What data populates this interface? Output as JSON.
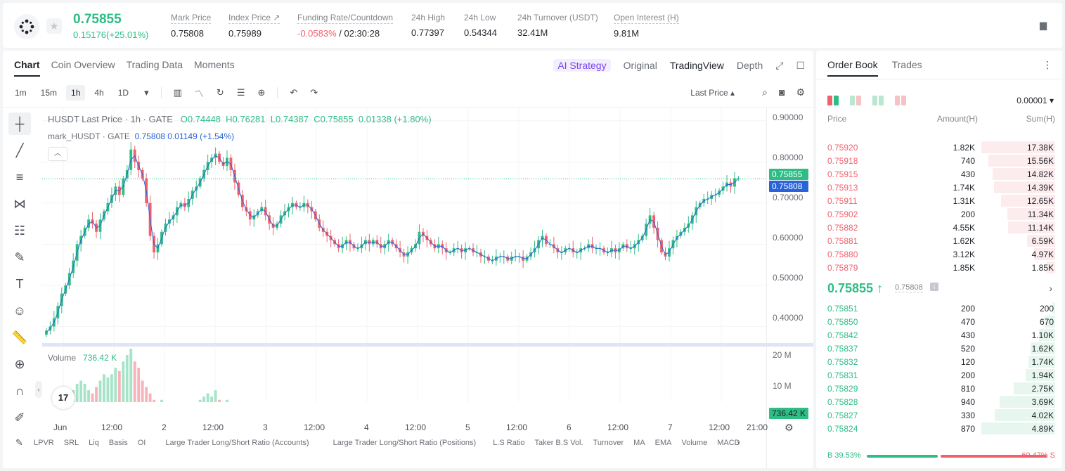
{
  "ticker": {
    "last_price": "0.75855",
    "change": "0.15176(+25.01%)",
    "stats": [
      {
        "label": "Mark Price",
        "value": "0.75808"
      },
      {
        "label": "Index Price ↗",
        "value": "0.75989"
      },
      {
        "label": "Funding Rate/Countdown",
        "value_neg": "-0.0583%",
        "value": "/ 02:30:28"
      },
      {
        "label": "24h High",
        "value": "0.77397"
      },
      {
        "label": "24h Low",
        "value": "0.54344"
      },
      {
        "label": "24h Turnover (USDT)",
        "value": "32.41M"
      },
      {
        "label": "Open Interest (H)",
        "value": "9.81M"
      }
    ]
  },
  "chart_tabs": [
    "Chart",
    "Coin Overview",
    "Trading Data",
    "Moments"
  ],
  "view_tabs": {
    "strategy": "AI Strategy",
    "original": "Original",
    "tradingview": "TradingView",
    "depth": "Depth"
  },
  "timeframes": [
    "1m",
    "15m",
    "1h",
    "4h",
    "1D"
  ],
  "last_price_select": "Last Price",
  "legend": {
    "symbol": "HUSDT Last Price · 1h · GATE",
    "o": "O0.74448",
    "h": "H0.76281",
    "l": "L0.74387",
    "c": "C0.75855",
    "chg": "0.01338 (+1.80%)",
    "mark": "mark_HUSDT · GATE",
    "mark_val": "0.75808 0.01149 (+1.54%)",
    "volume_label": "Volume",
    "volume_val": "736.42 K"
  },
  "tv_logo": "17",
  "indicators": [
    "LPVR",
    "SRL",
    "Liq",
    "Basis",
    "OI",
    "Large Trader Long/Short Ratio (Accounts)",
    "Large Trader Long/Short Ratio (Positions)",
    "L.S Ratio",
    "Taker B.S Vol.",
    "Turnover",
    "MA",
    "EMA",
    "Volume",
    "MACD"
  ],
  "chart_data": {
    "type": "candlestick",
    "yaxis_ticks": [
      "0.90000",
      "0.80000",
      "0.70000",
      "0.60000",
      "0.50000",
      "0.40000"
    ],
    "ylim": [
      0.37,
      0.92
    ],
    "volume_ticks": [
      "20 M",
      "10 M"
    ],
    "x_ticks": [
      "Jun",
      "12:00",
      "2",
      "12:00",
      "3",
      "12:00",
      "4",
      "12:00",
      "5",
      "12:00",
      "6",
      "12:00",
      "7",
      "12:00",
      "21:00"
    ],
    "last_price_tag": "0.75855",
    "mark_price_tag": "0.75808",
    "volume_tag": "736.42 K",
    "closes": [
      0.39,
      0.4,
      0.42,
      0.45,
      0.48,
      0.5,
      0.53,
      0.56,
      0.6,
      0.62,
      0.64,
      0.66,
      0.65,
      0.63,
      0.66,
      0.68,
      0.7,
      0.72,
      0.74,
      0.72,
      0.76,
      0.78,
      0.83,
      0.8,
      0.78,
      0.76,
      0.7,
      0.62,
      0.58,
      0.6,
      0.63,
      0.65,
      0.66,
      0.67,
      0.69,
      0.7,
      0.69,
      0.71,
      0.73,
      0.74,
      0.76,
      0.78,
      0.8,
      0.81,
      0.82,
      0.8,
      0.79,
      0.81,
      0.78,
      0.75,
      0.72,
      0.69,
      0.68,
      0.66,
      0.67,
      0.68,
      0.69,
      0.67,
      0.65,
      0.64,
      0.65,
      0.67,
      0.68,
      0.69,
      0.7,
      0.69,
      0.69,
      0.7,
      0.69,
      0.68,
      0.66,
      0.64,
      0.63,
      0.62,
      0.61,
      0.6,
      0.59,
      0.6,
      0.61,
      0.6,
      0.59,
      0.59,
      0.6,
      0.61,
      0.6,
      0.61,
      0.6,
      0.59,
      0.6,
      0.61,
      0.6,
      0.59,
      0.58,
      0.57,
      0.58,
      0.59,
      0.6,
      0.63,
      0.62,
      0.61,
      0.6,
      0.59,
      0.6,
      0.59,
      0.58,
      0.58,
      0.59,
      0.59,
      0.58,
      0.59,
      0.59,
      0.58,
      0.58,
      0.57,
      0.57,
      0.56,
      0.56,
      0.57,
      0.57,
      0.57,
      0.56,
      0.57,
      0.57,
      0.57,
      0.56,
      0.57,
      0.58,
      0.59,
      0.61,
      0.62,
      0.6,
      0.6,
      0.59,
      0.58,
      0.58,
      0.59,
      0.59,
      0.58,
      0.58,
      0.59,
      0.59,
      0.6,
      0.59,
      0.59,
      0.59,
      0.58,
      0.58,
      0.59,
      0.58,
      0.59,
      0.6,
      0.59,
      0.59,
      0.6,
      0.61,
      0.62,
      0.65,
      0.67,
      0.64,
      0.61,
      0.58,
      0.57,
      0.59,
      0.61,
      0.62,
      0.63,
      0.64,
      0.65,
      0.67,
      0.69,
      0.7,
      0.71,
      0.71,
      0.72,
      0.72,
      0.73,
      0.74,
      0.75,
      0.74,
      0.76,
      0.76
    ],
    "volumes": [
      3,
      5,
      6,
      8,
      9,
      10,
      8,
      9,
      11,
      12,
      11,
      9,
      8,
      10,
      12,
      14,
      13,
      14,
      16,
      15,
      18,
      20,
      22,
      18,
      16,
      12,
      10,
      8,
      6,
      5,
      6,
      5,
      4,
      4,
      5,
      4,
      5,
      5,
      4,
      5,
      6,
      7,
      8,
      7,
      9,
      6,
      5,
      6,
      5,
      4,
      3,
      3,
      2,
      2,
      2,
      2,
      1,
      1,
      1,
      1,
      1,
      1,
      1,
      1,
      2,
      1,
      2,
      1,
      1,
      1,
      1,
      1,
      1,
      1,
      1,
      1,
      1,
      1,
      1,
      1,
      1,
      1,
      1,
      1,
      2,
      1,
      1,
      1,
      1,
      1,
      1,
      1,
      1,
      1,
      1,
      1,
      1,
      2,
      1,
      1,
      1,
      1,
      1,
      1,
      1,
      1,
      1,
      1,
      1,
      1,
      1,
      1,
      1,
      1,
      1,
      1,
      1,
      1,
      1,
      1,
      1,
      1,
      1,
      1,
      1,
      1,
      1,
      1,
      1,
      1,
      1,
      1,
      1,
      1,
      1,
      1,
      1,
      1,
      1,
      1,
      1,
      1,
      1,
      1,
      1,
      1,
      1,
      1,
      1,
      1,
      1,
      1,
      1,
      1,
      2,
      1,
      1,
      3,
      2,
      2,
      2,
      2,
      2,
      2,
      1,
      1,
      1,
      2,
      1,
      1,
      1,
      1,
      1,
      1,
      1,
      1,
      1,
      1,
      1,
      1,
      1
    ]
  },
  "order_book": {
    "tabs": [
      "Order Book",
      "Trades"
    ],
    "precision": "0.00001 ▾",
    "headers": {
      "price": "Price",
      "amount": "Amount(H)",
      "sum": "Sum(H)"
    },
    "asks": [
      {
        "price": "0.75920",
        "amount": "1.82K",
        "sum": "17.38K",
        "depth": 1.0
      },
      {
        "price": "0.75918",
        "amount": "740",
        "sum": "15.56K",
        "depth": 0.9
      },
      {
        "price": "0.75915",
        "amount": "430",
        "sum": "14.82K",
        "depth": 0.85
      },
      {
        "price": "0.75913",
        "amount": "1.74K",
        "sum": "14.39K",
        "depth": 0.83
      },
      {
        "price": "0.75911",
        "amount": "1.31K",
        "sum": "12.65K",
        "depth": 0.73
      },
      {
        "price": "0.75902",
        "amount": "200",
        "sum": "11.34K",
        "depth": 0.65
      },
      {
        "price": "0.75882",
        "amount": "4.55K",
        "sum": "11.14K",
        "depth": 0.64
      },
      {
        "price": "0.75881",
        "amount": "1.62K",
        "sum": "6.59K",
        "depth": 0.38
      },
      {
        "price": "0.75880",
        "amount": "3.12K",
        "sum": "4.97K",
        "depth": 0.29
      },
      {
        "price": "0.75879",
        "amount": "1.85K",
        "sum": "1.85K",
        "depth": 0.11
      }
    ],
    "mid_price": "0.75855 ↑",
    "mid_mark": "0.75808",
    "bids": [
      {
        "price": "0.75851",
        "amount": "200",
        "sum": "200",
        "depth": 0.04
      },
      {
        "price": "0.75850",
        "amount": "470",
        "sum": "670",
        "depth": 0.14
      },
      {
        "price": "0.75842",
        "amount": "430",
        "sum": "1.10K",
        "depth": 0.22
      },
      {
        "price": "0.75837",
        "amount": "520",
        "sum": "1.62K",
        "depth": 0.33
      },
      {
        "price": "0.75832",
        "amount": "120",
        "sum": "1.74K",
        "depth": 0.36
      },
      {
        "price": "0.75831",
        "amount": "200",
        "sum": "1.94K",
        "depth": 0.4
      },
      {
        "price": "0.75829",
        "amount": "810",
        "sum": "2.75K",
        "depth": 0.56
      },
      {
        "price": "0.75828",
        "amount": "940",
        "sum": "3.69K",
        "depth": 0.75
      },
      {
        "price": "0.75827",
        "amount": "330",
        "sum": "4.02K",
        "depth": 0.82
      },
      {
        "price": "0.75824",
        "amount": "870",
        "sum": "4.89K",
        "depth": 1.0
      }
    ],
    "buy_ratio": "B 39.53%",
    "sell_ratio": "60.47% S",
    "buy_pct": 39.53
  },
  "colors": {
    "up": "#2ebd85",
    "down": "#f0616d",
    "mark": "#2a63d8"
  }
}
